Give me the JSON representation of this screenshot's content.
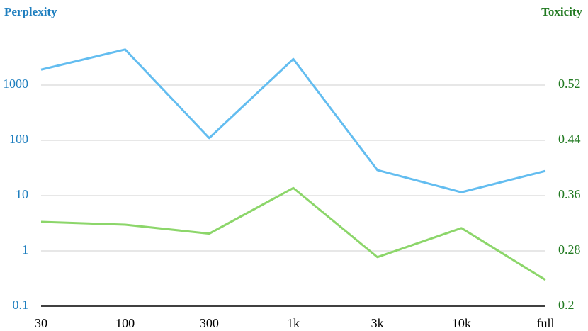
{
  "chart_data": {
    "type": "line",
    "ylabel": "Perplexity",
    "y2label": "Toxicity",
    "ylabel_color": "#1f7fbf",
    "y2label_color": "#217a21",
    "categories": [
      "30",
      "100",
      "300",
      "1k",
      "3k",
      "10k",
      "full"
    ],
    "series": [
      {
        "name": "Perplexity",
        "color": "#63bdf0",
        "values": [
          1900,
          4400,
          110,
          2960,
          29,
          11.5,
          28
        ]
      },
      {
        "name": "Toxicity",
        "color": "#8cd66a",
        "axis": "y2",
        "values": [
          0.322,
          0.318,
          0.305,
          0.371,
          0.271,
          0.313,
          0.238
        ]
      }
    ],
    "ylim": [
      0.1,
      10000
    ],
    "yticks": [
      0.1,
      1,
      10,
      100,
      1000
    ],
    "ylog": true,
    "y2lim": [
      0.2,
      0.6
    ],
    "y2ticks": [
      0.2,
      0.28,
      0.36,
      0.44,
      0.52
    ],
    "grid": true
  }
}
